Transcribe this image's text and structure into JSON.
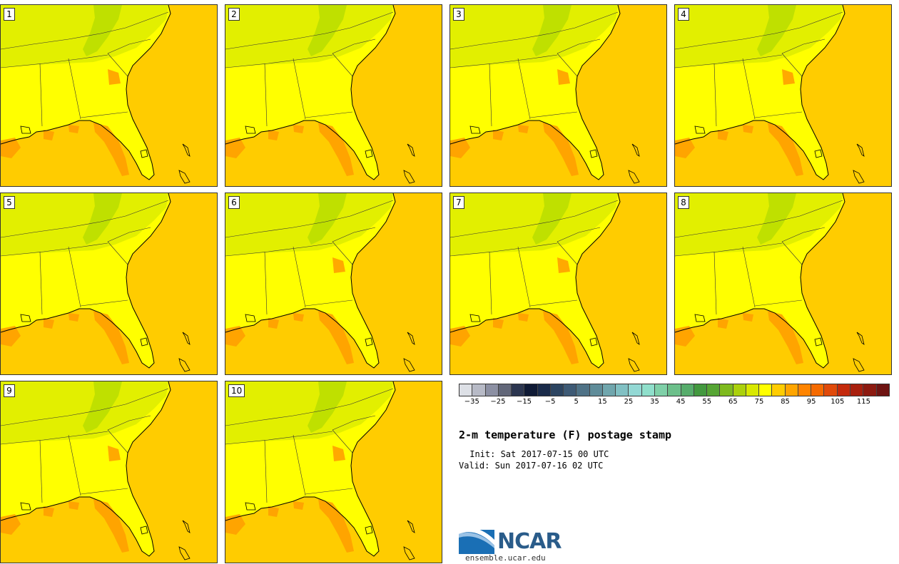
{
  "title": "2-m temperature (F) postage stamp",
  "init": " Init: Sat 2017-07-15 00 UTC",
  "valid": "Valid: Sun 2017-07-16 02 UTC",
  "panels": [
    {
      "label": "1"
    },
    {
      "label": "2"
    },
    {
      "label": "3"
    },
    {
      "label": "4"
    },
    {
      "label": "5"
    },
    {
      "label": "6"
    },
    {
      "label": "7"
    },
    {
      "label": "8"
    },
    {
      "label": "9"
    },
    {
      "label": "10"
    }
  ],
  "colorbar": {
    "colors": [
      "#dde0e6",
      "#b7bac6",
      "#8c90a3",
      "#626779",
      "#2c3650",
      "#0f1a35",
      "#1a2b4a",
      "#2c4460",
      "#3e5a75",
      "#4f7286",
      "#5f8c99",
      "#70a6ad",
      "#81c0c3",
      "#93d8d4",
      "#8fdfcb",
      "#7fd0a8",
      "#6cbf8a",
      "#57ad6c",
      "#43993f",
      "#56a534",
      "#7eba1e",
      "#abd10c",
      "#d8e800",
      "#ffff00",
      "#ffcc00",
      "#ffa500",
      "#ff8400",
      "#f56a00",
      "#e04a0a",
      "#c42a0c",
      "#a8200e",
      "#8c1a10",
      "#6e1412"
    ],
    "tick_labels": [
      "−35",
      "−25",
      "−15",
      "−5",
      "5",
      "15",
      "25",
      "35",
      "45",
      "55",
      "65",
      "75",
      "85",
      "95",
      "105",
      "115"
    ],
    "min": -40,
    "max": 125,
    "step": 5
  },
  "logo": {
    "name": "NCAR",
    "url": "ensemble.ucar.edu"
  },
  "palette": {
    "ocean": "#ffcc00",
    "warm": "#ffff00",
    "mild": "#e2ef00",
    "cool": "#bfe000",
    "hot": "#ffa000",
    "border": "#000000"
  }
}
